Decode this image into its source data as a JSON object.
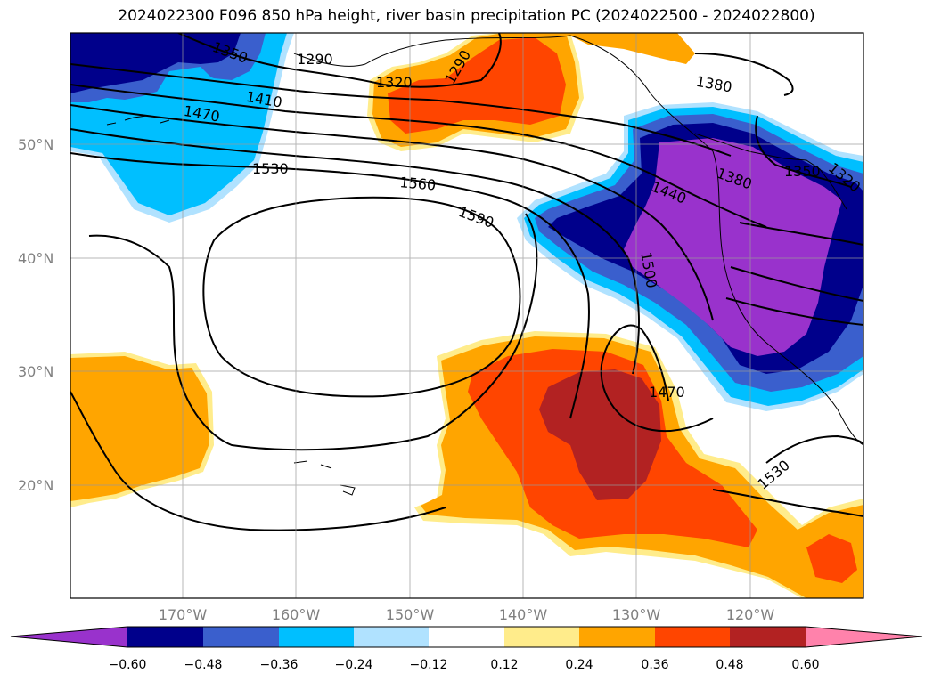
{
  "title": "2024022300 F096 850 hPa height, river basin precipitation PC (2024022500 - 2024022800)",
  "colors": {
    "neg_extreme": "#9932cc",
    "neg_060": "#00008b",
    "neg_048": "#3a5fcd",
    "neg_036": "#00bfff",
    "neg_024": "#b0e2ff",
    "neutral": "#ffffff",
    "pos_012": "#ffec8b",
    "pos_024": "#ffa500",
    "pos_036": "#ff4500",
    "pos_048": "#b22222",
    "pos_extreme": "#ff82ab"
  },
  "lat_labels": [
    "50°N",
    "40°N",
    "30°N",
    "20°N"
  ],
  "lon_labels": [
    "170°W",
    "160°W",
    "150°W",
    "140°W",
    "130°W",
    "120°W"
  ],
  "contour_labels": [
    "1350",
    "1290",
    "1320",
    "1290",
    "1380",
    "1410",
    "1470",
    "1530",
    "1560",
    "1590",
    "1440",
    "1380",
    "1350",
    "1500",
    "1470",
    "1530",
    "1320"
  ],
  "colorbar": {
    "ticks": [
      "−0.60",
      "−0.48",
      "−0.36",
      "−0.24",
      "−0.12",
      "0.12",
      "0.24",
      "0.36",
      "0.48",
      "0.60"
    ]
  }
}
